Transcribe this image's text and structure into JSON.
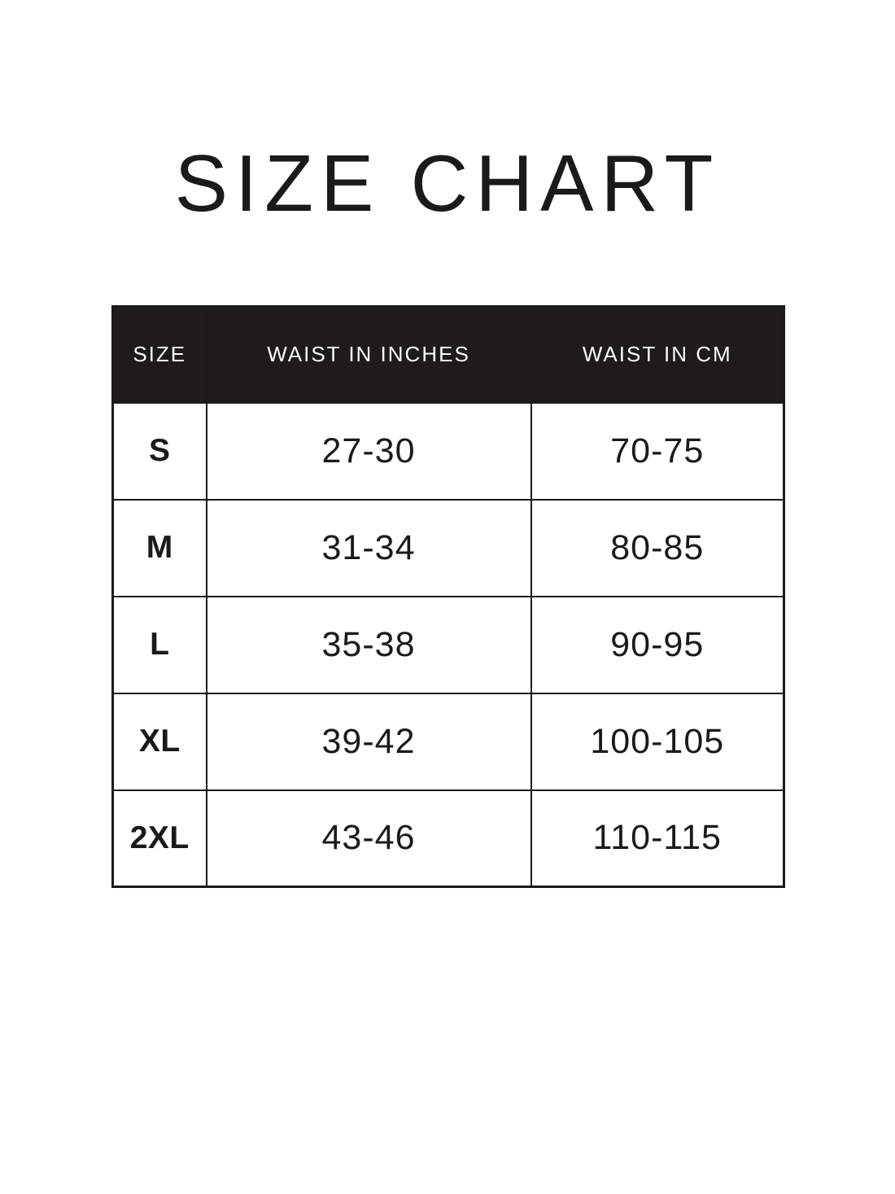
{
  "title": "SIZE CHART",
  "colors": {
    "page_bg": "#ffffff",
    "header_bg": "#1d1b1b",
    "header_text": "#fdfdfd",
    "body_text": "#1b1a1a",
    "border": "#1b1a1a"
  },
  "chart_data": {
    "type": "table",
    "title": "SIZE CHART",
    "columns": [
      "SIZE",
      "WAIST IN INCHES",
      "WAIST IN CM"
    ],
    "rows": [
      [
        "S",
        "27-30",
        "70-75"
      ],
      [
        "M",
        "31-34",
        "80-85"
      ],
      [
        "L",
        "35-38",
        "90-95"
      ],
      [
        "XL",
        "39-42",
        "100-105"
      ],
      [
        "2XL",
        "43-46",
        "110-115"
      ]
    ]
  }
}
